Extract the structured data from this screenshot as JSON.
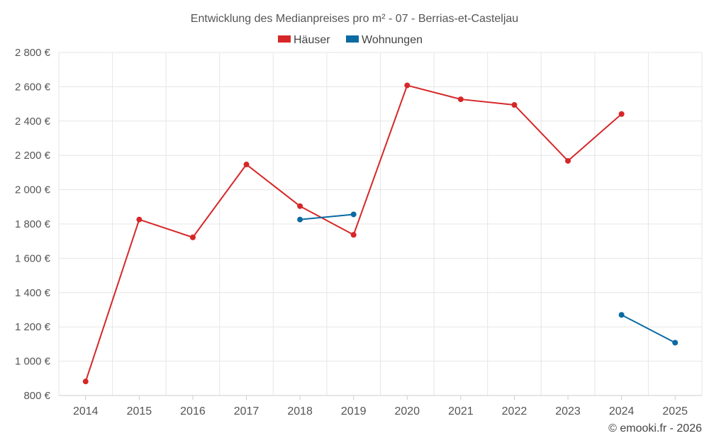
{
  "chart_data": {
    "type": "line",
    "title": "Entwicklung des Medianpreises pro m² - 07 - Berrias-et-Casteljau",
    "xlabel": "",
    "ylabel": "",
    "categories": [
      "2014",
      "2015",
      "2016",
      "2017",
      "2018",
      "2019",
      "2020",
      "2021",
      "2022",
      "2023",
      "2024",
      "2025"
    ],
    "ylim": [
      800,
      2800
    ],
    "yticks": [
      800,
      1000,
      1200,
      1400,
      1600,
      1800,
      2000,
      2200,
      2400,
      2600,
      2800
    ],
    "ytick_labels": [
      "800 €",
      "1 000 €",
      "1 200 €",
      "1 400 €",
      "1 600 €",
      "1 800 €",
      "2 000 €",
      "2 200 €",
      "2 400 €",
      "2 600 €",
      "2 800 €"
    ],
    "grid": true,
    "legend_position": "top-center",
    "series": [
      {
        "name": "Häuser",
        "color": "#d62728",
        "values": [
          882,
          1826,
          1722,
          2147,
          1904,
          1737,
          2608,
          2527,
          2494,
          2168,
          2441,
          null
        ]
      },
      {
        "name": "Wohnungen",
        "color": "#0b6aa2",
        "values": [
          null,
          null,
          null,
          null,
          1826,
          1856,
          null,
          null,
          null,
          null,
          1270,
          1108
        ]
      }
    ]
  },
  "footer": {
    "credit": "© emooki.fr - 2026"
  }
}
